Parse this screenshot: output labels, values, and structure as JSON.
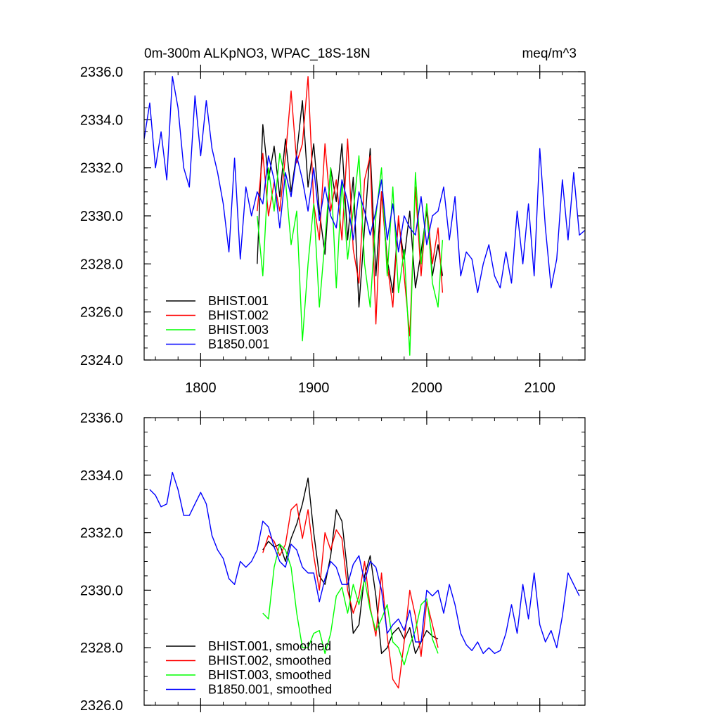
{
  "chart_data": [
    {
      "type": "line",
      "title_left": "0m-300m ALKpNO3, WPAC_18S-18N",
      "title_right": "meq/m^3",
      "xlim": [
        1750,
        2140
      ],
      "ylim": [
        2324,
        2336
      ],
      "xticks": [
        1800,
        1900,
        2000,
        2100
      ],
      "xtick_labels": [
        "1800",
        "1900",
        "2000",
        "2100"
      ],
      "yticks": [
        2324,
        2326,
        2328,
        2330,
        2332,
        2334,
        2336
      ],
      "ytick_labels": [
        "2324.0",
        "2326.0",
        "2328.0",
        "2330.0",
        "2332.0",
        "2334.0",
        "2336.0"
      ],
      "legend_position": "bottom-left",
      "series": [
        {
          "name": "BHIST.001",
          "color": "#000000",
          "x": [
            1850,
            1855,
            1860,
            1865,
            1870,
            1875,
            1880,
            1885,
            1890,
            1895,
            1900,
            1905,
            1910,
            1915,
            1920,
            1925,
            1930,
            1935,
            1940,
            1945,
            1950,
            1955,
            1960,
            1965,
            1970,
            1975,
            1980,
            1985,
            1990,
            1995,
            2000,
            2005,
            2010,
            2014
          ],
          "y": [
            2328.0,
            2333.8,
            2331.5,
            2332.9,
            2330.8,
            2333.2,
            2331.0,
            2332.6,
            2334.8,
            2331.2,
            2333.0,
            2330.2,
            2328.4,
            2332.0,
            2330.6,
            2333.0,
            2329.0,
            2331.6,
            2326.2,
            2329.5,
            2332.8,
            2327.5,
            2331.0,
            2328.2,
            2326.8,
            2329.8,
            2328.2,
            2330.2,
            2327.0,
            2328.5,
            2330.2,
            2327.5,
            2328.8,
            2327.5
          ]
        },
        {
          "name": "BHIST.002",
          "color": "#ff0000",
          "x": [
            1850,
            1855,
            1860,
            1865,
            1870,
            1875,
            1880,
            1885,
            1890,
            1895,
            1900,
            1905,
            1910,
            1915,
            1920,
            1925,
            1930,
            1935,
            1940,
            1945,
            1950,
            1955,
            1960,
            1965,
            1970,
            1975,
            1980,
            1985,
            1990,
            1995,
            2000,
            2005,
            2010,
            2014
          ],
          "y": [
            2330.2,
            2332.6,
            2330.0,
            2331.4,
            2330.2,
            2332.5,
            2335.2,
            2332.2,
            2333.0,
            2335.8,
            2330.5,
            2329.0,
            2333.0,
            2330.2,
            2331.5,
            2329.0,
            2333.2,
            2328.6,
            2327.2,
            2331.5,
            2332.5,
            2325.5,
            2331.0,
            2328.0,
            2326.2,
            2330.0,
            2327.5,
            2325.0,
            2331.2,
            2327.5,
            2330.5,
            2328.0,
            2329.5,
            2326.8
          ]
        },
        {
          "name": "BHIST.003",
          "color": "#00ff00",
          "x": [
            1850,
            1855,
            1860,
            1865,
            1870,
            1875,
            1880,
            1885,
            1890,
            1895,
            1900,
            1905,
            1910,
            1915,
            1920,
            1925,
            1930,
            1935,
            1940,
            1945,
            1950,
            1955,
            1960,
            1965,
            1970,
            1975,
            1980,
            1985,
            1990,
            1995,
            2000,
            2005,
            2010,
            2014
          ],
          "y": [
            2330.0,
            2327.5,
            2332.0,
            2330.2,
            2332.6,
            2331.5,
            2328.8,
            2330.2,
            2324.8,
            2328.0,
            2330.5,
            2326.2,
            2329.0,
            2332.0,
            2327.0,
            2331.5,
            2328.2,
            2330.2,
            2332.5,
            2328.0,
            2326.2,
            2330.0,
            2332.0,
            2327.5,
            2331.2,
            2326.8,
            2328.6,
            2324.2,
            2331.8,
            2328.0,
            2330.5,
            2327.2,
            2326.2,
            2329.0
          ]
        },
        {
          "name": "B1850.001",
          "color": "#0000ff",
          "x": [
            1750,
            1755,
            1760,
            1765,
            1770,
            1775,
            1780,
            1785,
            1790,
            1795,
            1800,
            1805,
            1810,
            1815,
            1820,
            1825,
            1830,
            1835,
            1840,
            1845,
            1850,
            1855,
            1860,
            1865,
            1870,
            1875,
            1880,
            1885,
            1890,
            1895,
            1900,
            1905,
            1910,
            1915,
            1920,
            1925,
            1930,
            1935,
            1940,
            1945,
            1950,
            1955,
            1960,
            1965,
            1970,
            1975,
            1980,
            1985,
            1990,
            1995,
            2000,
            2005,
            2010,
            2015,
            2020,
            2025,
            2030,
            2035,
            2040,
            2045,
            2050,
            2055,
            2060,
            2065,
            2070,
            2075,
            2080,
            2085,
            2090,
            2095,
            2100,
            2105,
            2110,
            2115,
            2120,
            2125,
            2130,
            2135,
            2140
          ],
          "y": [
            2333.2,
            2334.7,
            2332.0,
            2333.5,
            2331.5,
            2335.8,
            2334.5,
            2332.0,
            2331.2,
            2335.0,
            2332.5,
            2334.8,
            2332.8,
            2331.8,
            2330.5,
            2328.5,
            2332.4,
            2328.2,
            2331.2,
            2330.0,
            2331.0,
            2330.5,
            2332.5,
            2331.5,
            2329.5,
            2331.8,
            2330.8,
            2332.5,
            2331.5,
            2330.2,
            2332.0,
            2329.8,
            2331.2,
            2330.0,
            2329.5,
            2331.5,
            2330.6,
            2329.0,
            2331.0,
            2330.2,
            2329.2,
            2330.2,
            2331.5,
            2329.0,
            2330.5,
            2328.5,
            2330.0,
            2329.5,
            2329.2,
            2330.8,
            2328.8,
            2330.0,
            2330.2,
            2331.2,
            2329.0,
            2330.8,
            2327.5,
            2328.5,
            2328.2,
            2326.8,
            2328.0,
            2328.8,
            2327.5,
            2327.0,
            2328.5,
            2327.2,
            2330.2,
            2328.0,
            2330.5,
            2327.5,
            2332.8,
            2329.5,
            2327.0,
            2328.2,
            2331.5,
            2329.0,
            2331.8,
            2329.2,
            2329.4
          ]
        }
      ]
    },
    {
      "type": "line",
      "xlim": [
        1750,
        2140
      ],
      "ylim": [
        2326,
        2336
      ],
      "xticks": [
        1800,
        1900,
        2000,
        2100
      ],
      "yticks": [
        2326,
        2328,
        2330,
        2332,
        2334,
        2336
      ],
      "ytick_labels": [
        "2326.0",
        "2328.0",
        "2330.0",
        "2332.0",
        "2334.0",
        "2336.0"
      ],
      "legend_position": "bottom-left",
      "series": [
        {
          "name": "BHIST.001, smoothed",
          "color": "#000000",
          "x": [
            1855,
            1860,
            1865,
            1870,
            1875,
            1880,
            1885,
            1890,
            1895,
            1900,
            1905,
            1910,
            1915,
            1920,
            1925,
            1930,
            1935,
            1940,
            1945,
            1950,
            1955,
            1960,
            1965,
            1970,
            1975,
            1980,
            1985,
            1990,
            1995,
            2000,
            2005,
            2010
          ],
          "y": [
            2331.4,
            2331.7,
            2331.5,
            2331.6,
            2331.0,
            2331.8,
            2332.3,
            2333.0,
            2333.9,
            2332.0,
            2330.5,
            2330.2,
            2331.2,
            2332.8,
            2332.4,
            2330.6,
            2328.5,
            2328.8,
            2330.5,
            2331.2,
            2329.8,
            2327.8,
            2328.0,
            2328.5,
            2328.7,
            2328.3,
            2328.7,
            2327.8,
            2328.2,
            2328.6,
            2328.4,
            2328.3
          ]
        },
        {
          "name": "BHIST.002, smoothed",
          "color": "#ff0000",
          "x": [
            1855,
            1860,
            1865,
            1870,
            1875,
            1880,
            1885,
            1890,
            1895,
            1900,
            1905,
            1910,
            1915,
            1920,
            1925,
            1930,
            1935,
            1940,
            1945,
            1950,
            1955,
            1960,
            1965,
            1970,
            1975,
            1980,
            1985,
            1990,
            1995,
            2000,
            2005,
            2010
          ],
          "y": [
            2331.3,
            2331.9,
            2331.7,
            2331.2,
            2331.6,
            2332.8,
            2333.0,
            2331.8,
            2332.8,
            2331.2,
            2330.0,
            2332.0,
            2331.4,
            2332.1,
            2331.8,
            2330.0,
            2329.2,
            2329.8,
            2331.0,
            2329.4,
            2328.4,
            2330.6,
            2328.4,
            2326.9,
            2326.6,
            2328.2,
            2330.0,
            2329.1,
            2327.7,
            2329.6,
            2328.8,
            2328.0
          ]
        },
        {
          "name": "BHIST.003, smoothed",
          "color": "#00ff00",
          "x": [
            1855,
            1860,
            1865,
            1870,
            1875,
            1880,
            1885,
            1890,
            1895,
            1900,
            1905,
            1910,
            1915,
            1920,
            1925,
            1930,
            1935,
            1940,
            1945,
            1950,
            1955,
            1960,
            1965,
            1970,
            1975,
            1980,
            1985,
            1990,
            1995,
            2000,
            2005,
            2010
          ],
          "y": [
            2329.2,
            2329.0,
            2330.8,
            2331.6,
            2331.4,
            2330.8,
            2329.2,
            2328.0,
            2328.0,
            2328.5,
            2328.6,
            2327.8,
            2328.5,
            2329.8,
            2330.1,
            2329.2,
            2330.2,
            2329.5,
            2330.4,
            2329.3,
            2328.6,
            2329.0,
            2329.5,
            2328.2,
            2328.0,
            2327.4,
            2328.1,
            2328.6,
            2329.5,
            2329.7,
            2328.3,
            2327.8
          ]
        },
        {
          "name": "B1850.001, smoothed",
          "color": "#0000ff",
          "x": [
            1755,
            1760,
            1765,
            1770,
            1775,
            1780,
            1785,
            1790,
            1795,
            1800,
            1805,
            1810,
            1815,
            1820,
            1825,
            1830,
            1835,
            1840,
            1845,
            1850,
            1855,
            1860,
            1865,
            1870,
            1875,
            1880,
            1885,
            1890,
            1895,
            1900,
            1905,
            1910,
            1915,
            1920,
            1925,
            1930,
            1935,
            1940,
            1945,
            1950,
            1955,
            1960,
            1965,
            1970,
            1975,
            1980,
            1985,
            1990,
            1995,
            2000,
            2005,
            2010,
            2015,
            2020,
            2025,
            2030,
            2035,
            2040,
            2045,
            2050,
            2055,
            2060,
            2065,
            2070,
            2075,
            2080,
            2085,
            2090,
            2095,
            2100,
            2105,
            2110,
            2115,
            2120,
            2125,
            2130,
            2135
          ],
          "y": [
            2333.5,
            2333.3,
            2332.9,
            2333.0,
            2334.1,
            2333.5,
            2332.6,
            2332.6,
            2333.0,
            2333.4,
            2333.0,
            2331.9,
            2331.4,
            2331.1,
            2330.4,
            2330.2,
            2331.0,
            2330.8,
            2331.0,
            2331.4,
            2332.4,
            2332.2,
            2331.5,
            2331.0,
            2330.8,
            2331.6,
            2331.4,
            2330.8,
            2330.6,
            2330.6,
            2329.6,
            2330.4,
            2331.0,
            2330.8,
            2330.2,
            2330.2,
            2330.9,
            2331.2,
            2330.3,
            2331.0,
            2330.8,
            2330.0,
            2328.5,
            2328.8,
            2329.0,
            2328.6,
            2329.3,
            2328.2,
            2328.2,
            2330.0,
            2329.8,
            2330.0,
            2329.2,
            2330.2,
            2329.5,
            2328.5,
            2328.1,
            2327.9,
            2328.2,
            2327.8,
            2328.0,
            2327.8,
            2327.9,
            2328.5,
            2329.5,
            2328.5,
            2330.2,
            2329.0,
            2330.6,
            2328.8,
            2328.2,
            2328.6,
            2328.0,
            2329.1,
            2330.6,
            2330.2,
            2329.8
          ]
        }
      ]
    }
  ]
}
